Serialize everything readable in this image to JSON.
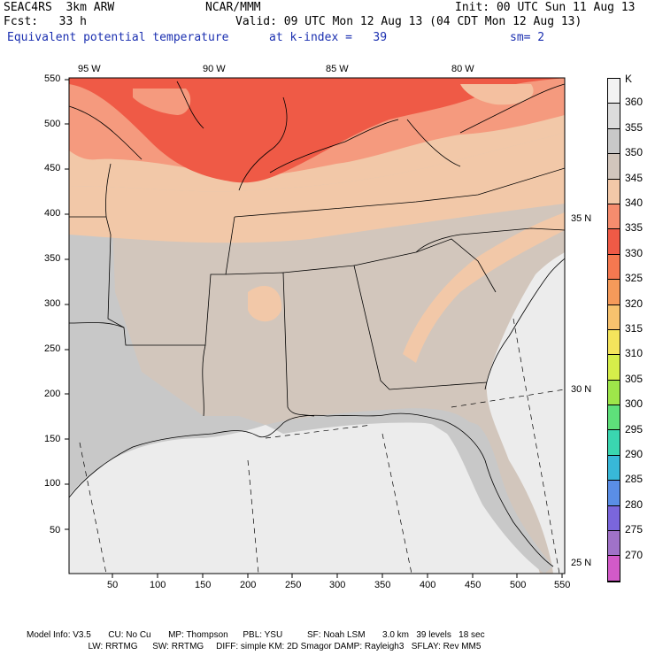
{
  "header": {
    "model": "SEAC4RS  3km ARW",
    "center": "NCAR/MMM",
    "init": "Init: 00 UTC Sun 11 Aug 13",
    "fcst": "Fcst:   33 h",
    "valid": "Valid: 09 UTC Mon 12 Aug 13 (04 CDT Mon 12 Aug 13)",
    "field": "Equivalent potential temperature",
    "level": "at k-index =   39",
    "smooth": "sm= 2"
  },
  "map": {
    "lon_labels": [
      "95 W",
      "90 W",
      "85 W",
      "80 W"
    ],
    "lat_labels": [
      "35 N",
      "30 N",
      "25 N"
    ],
    "x_ticks": [
      "50",
      "100",
      "150",
      "200",
      "250",
      "300",
      "350",
      "400",
      "450",
      "500",
      "550"
    ],
    "y_ticks": [
      "50",
      "100",
      "150",
      "200",
      "250",
      "300",
      "350",
      "400",
      "450",
      "500",
      "550"
    ]
  },
  "colorbar": {
    "unit": "K",
    "levels": [
      "360",
      "355",
      "350",
      "345",
      "340",
      "335",
      "330",
      "325",
      "320",
      "315",
      "310",
      "305",
      "300",
      "295",
      "290",
      "285",
      "280",
      "275",
      "270"
    ],
    "colors": [
      "#f2f2f2",
      "#dcdcdc",
      "#c8c8c8",
      "#d2c6bc",
      "#f2c8a8",
      "#f58c6e",
      "#ef5a46",
      "#f57850",
      "#f59a5a",
      "#f7c26e",
      "#f4e45c",
      "#d6ee4a",
      "#9ee64a",
      "#5ee07a",
      "#3ad6b0",
      "#38b8d8",
      "#5a8ee6",
      "#7a66dc",
      "#a072c8",
      "#d25ac8"
    ]
  },
  "footer": {
    "line1": "Model Info: V3.5       CU: No Cu       MP: Thompson      PBL: YSU          SF: Noah LSM       3.0 km   39 levels   18 sec",
    "line2": "                         LW: RRTMG      SW: RRTMG     DIFF: simple KM: 2D Smagor DAMP: Rayleigh3   SFLAY: Rev MM5"
  }
}
